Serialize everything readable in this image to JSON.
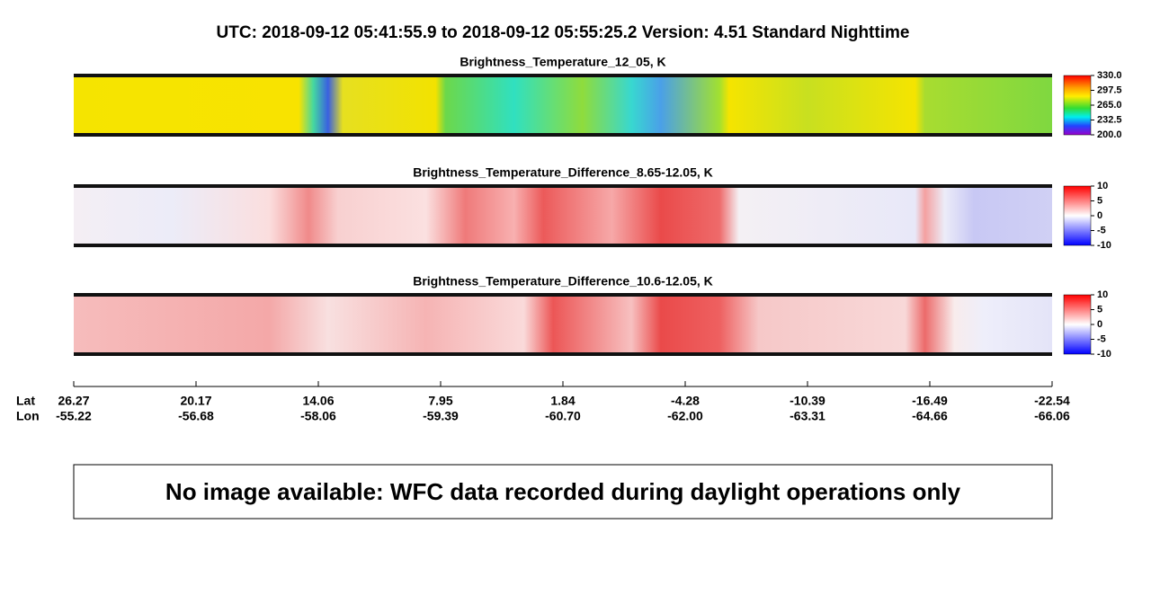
{
  "title": "UTC:  2018-09-12   05:41:55.9  to  2018-09-12   05:55:25.2    Version: 4.51  Standard Nighttime",
  "panels": [
    {
      "title": "Brightness_Temperature_12_05, K",
      "lim": [
        200,
        330
      ],
      "ticks": [
        {
          "value": 330,
          "label": "330.0"
        },
        {
          "value": 297.5,
          "label": "297.5"
        },
        {
          "value": 265,
          "label": "265.0"
        },
        {
          "value": 232.5,
          "label": "232.5"
        },
        {
          "value": 200,
          "label": "200.0"
        }
      ]
    },
    {
      "title": "Brightness_Temperature_Difference_8.65-12.05, K",
      "lim": [
        -10,
        10
      ],
      "ticks": [
        10,
        5,
        0,
        -5,
        -10
      ]
    },
    {
      "title": "Brightness_Temperature_Difference_10.6-12.05, K",
      "lim": [
        -10,
        10
      ],
      "ticks": [
        10,
        5,
        0,
        -5,
        -10
      ]
    }
  ],
  "axis": {
    "row_labels": [
      "Lat",
      "Lon"
    ],
    "lat": [
      "26.27",
      "20.17",
      "14.06",
      "7.95",
      "1.84",
      "-4.28",
      "-10.39",
      "-16.49",
      "-22.54"
    ],
    "lon": [
      "-55.22",
      "-56.68",
      "-58.06",
      "-59.39",
      "-60.70",
      "-62.00",
      "-63.31",
      "-64.66",
      "-66.06"
    ]
  },
  "notice": "No image available: WFC data recorded during daylight operations only"
}
